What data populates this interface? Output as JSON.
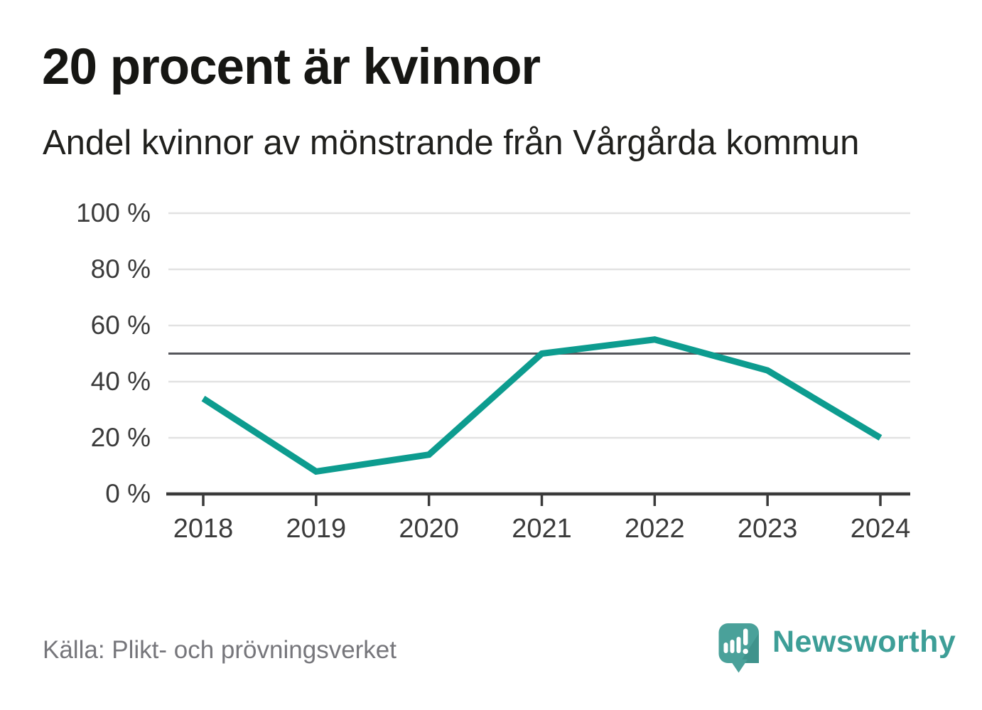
{
  "header": {
    "title": "20 procent är kvinnor",
    "subtitle": "Andel kvinnor av mönstrande från Vårgårda kommun"
  },
  "footer": {
    "source": "Källa: Plikt- och prövningsverket",
    "branding": {
      "logo_icon": "newsworthy-speech-bubble-chart-icon",
      "wordmark": "Newsworthy"
    }
  },
  "colors": {
    "line": "#0d9c8f",
    "grid": "#e2e2e2",
    "axis": "#3a3a3a",
    "reference_line": "#55565b",
    "title_text": "#161613",
    "axis_text": "#3b3b3b",
    "source_text": "#76767b",
    "brand_teal": "#4aa19a",
    "brand_teal_shade": "#3f938c"
  },
  "chart_data": {
    "type": "line",
    "title": "20 procent är kvinnor",
    "subtitle": "Andel kvinnor av mönstrande från Vårgårda kommun",
    "x": [
      "2018",
      "2019",
      "2020",
      "2021",
      "2022",
      "2023",
      "2024"
    ],
    "series": [
      {
        "name": "Andel kvinnor av mönstrande",
        "values": [
          34,
          8,
          14,
          50,
          55,
          44,
          20
        ]
      }
    ],
    "unit": "%",
    "ylim": [
      0,
      100
    ],
    "yticks": [
      0,
      20,
      40,
      60,
      80,
      100
    ],
    "ytick_labels": [
      "0 %",
      "20 %",
      "40 %",
      "60 %",
      "80 %",
      "100 %"
    ],
    "reference_line": 50,
    "grid": true,
    "legend": "none"
  }
}
